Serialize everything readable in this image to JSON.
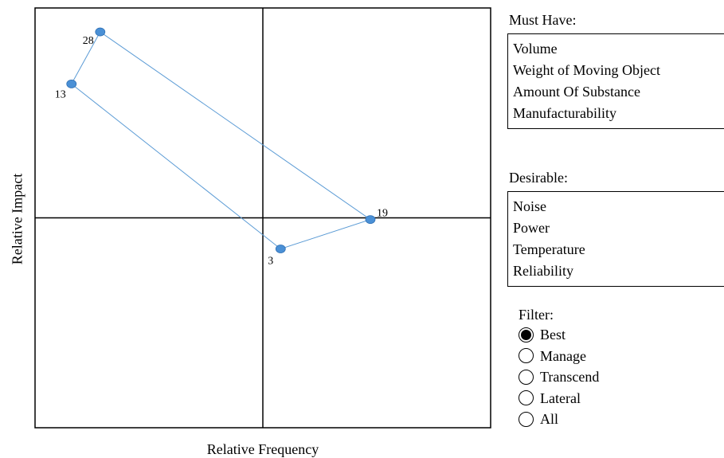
{
  "chart_data": {
    "type": "scatter",
    "xlabel": "Relative Frequency",
    "ylabel": "Relative Impact",
    "xlim": [
      0,
      100
    ],
    "ylim": [
      0,
      100
    ],
    "quadrant_divider": {
      "x": 50,
      "y": 50
    },
    "grid": false,
    "connected": true,
    "point_color": "#4a90d6",
    "line_color": "#5b9bd5",
    "points": [
      {
        "label": "28",
        "x": 14.3,
        "y": 94.3
      },
      {
        "label": "19",
        "x": 73.6,
        "y": 49.6
      },
      {
        "label": "3",
        "x": 53.9,
        "y": 42.6
      },
      {
        "label": "13",
        "x": 8.0,
        "y": 81.9
      }
    ]
  },
  "must_have": {
    "heading": "Must Have:",
    "items": [
      "Volume",
      "Weight of Moving Object",
      "Amount Of Substance",
      "Manufacturability"
    ]
  },
  "desirable": {
    "heading": "Desirable:",
    "items": [
      "Noise",
      "Power",
      "Temperature",
      "Reliability"
    ]
  },
  "filter": {
    "heading": "Filter:",
    "selected": "Best",
    "options": [
      "Best",
      "Manage",
      "Transcend",
      "Lateral",
      "All"
    ]
  }
}
